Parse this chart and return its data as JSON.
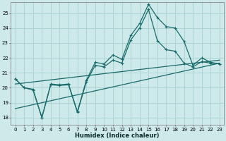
{
  "xlabel": "Humidex (Indice chaleur)",
  "bg_color": "#cde9e9",
  "grid_color": "#aed4d4",
  "line_color": "#1a6b6b",
  "xmin": -0.5,
  "xmax": 23.5,
  "ymin": 17.5,
  "ymax": 25.75,
  "yticks": [
    18,
    19,
    20,
    21,
    22,
    23,
    24,
    25
  ],
  "xticks": [
    0,
    1,
    2,
    3,
    4,
    5,
    6,
    7,
    8,
    9,
    10,
    11,
    12,
    13,
    14,
    15,
    16,
    17,
    18,
    19,
    20,
    21,
    22,
    23
  ],
  "line1_x": [
    0,
    1,
    2,
    3,
    4,
    5,
    6,
    7,
    8,
    9,
    10,
    11,
    12,
    13,
    14,
    15,
    16,
    17,
    18,
    19,
    20,
    21,
    22,
    23
  ],
  "line1_y": [
    20.6,
    20.0,
    19.9,
    18.0,
    20.25,
    20.2,
    20.25,
    18.4,
    20.5,
    21.7,
    21.6,
    22.2,
    21.9,
    23.5,
    24.3,
    25.6,
    24.7,
    24.1,
    24.0,
    23.1,
    21.5,
    22.0,
    21.7,
    21.6
  ],
  "line2_x": [
    0,
    1,
    2,
    3,
    4,
    5,
    6,
    7,
    8,
    9,
    10,
    11,
    12,
    13,
    14,
    15,
    16,
    17,
    18,
    19,
    20,
    21,
    22,
    23
  ],
  "line2_y": [
    20.6,
    20.0,
    19.85,
    18.0,
    20.2,
    20.15,
    20.2,
    18.35,
    20.4,
    21.5,
    21.4,
    21.85,
    21.65,
    23.2,
    24.0,
    25.25,
    23.15,
    22.55,
    22.45,
    21.65,
    21.4,
    21.75,
    21.65,
    21.6
  ],
  "trend1_x": [
    0,
    23
  ],
  "trend1_y": [
    20.25,
    21.85
  ],
  "trend2_x": [
    0,
    23
  ],
  "trend2_y": [
    18.6,
    21.65
  ]
}
